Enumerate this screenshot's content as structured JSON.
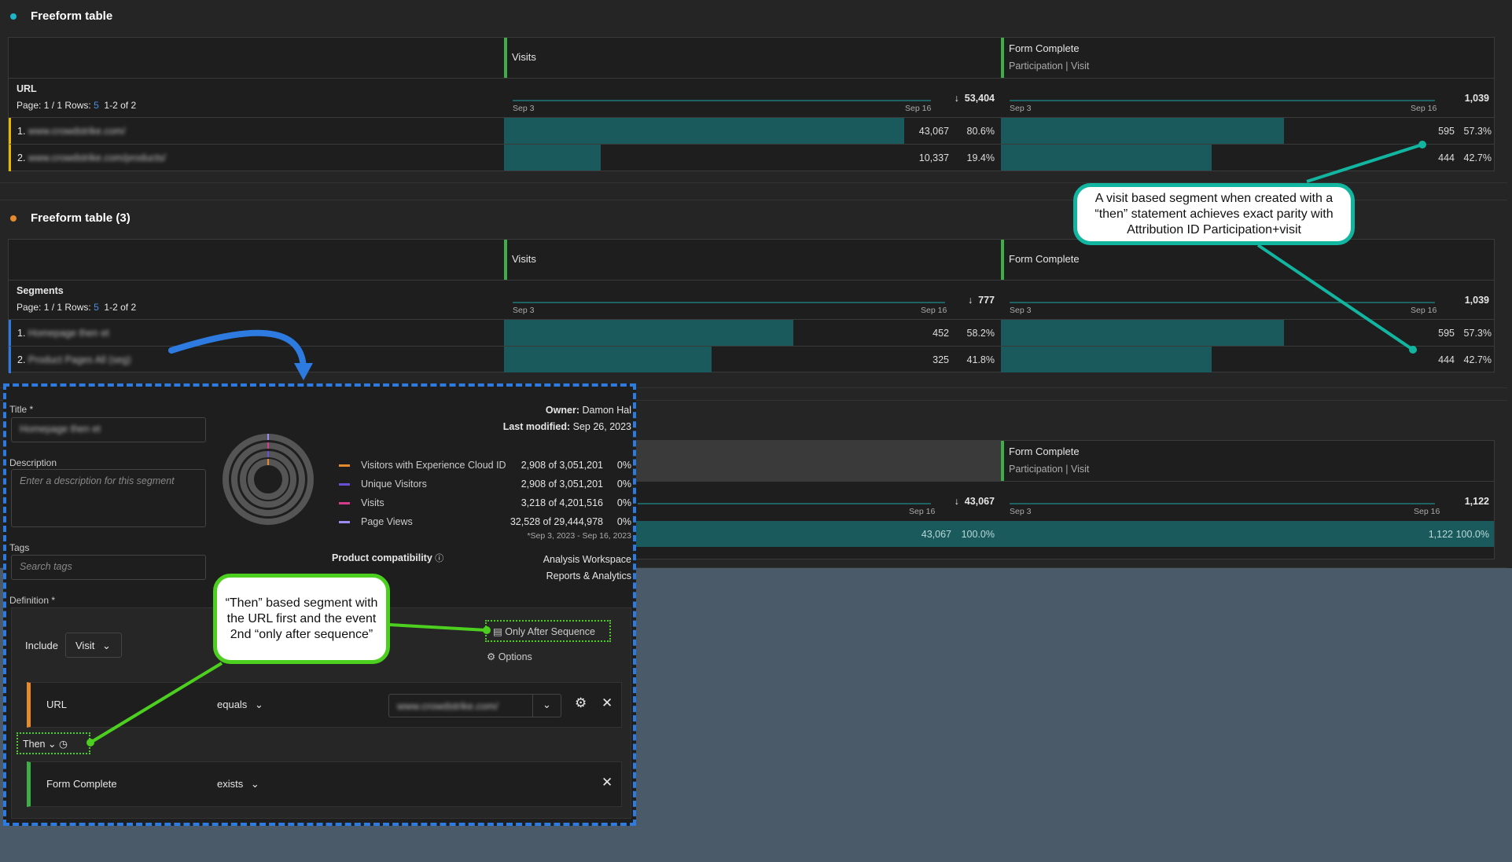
{
  "colors": {
    "accent_teal": "#1b5a5c",
    "metric_green": "#3fae49",
    "annotation_blue": "#2d7be0",
    "callout_teal": "#12b5a0",
    "callout_green": "#4ccf1f"
  },
  "table1": {
    "title": "Freeform table",
    "dimension": "URL",
    "paging": {
      "prefix": "Page: 1 / 1 Rows:",
      "rows": "5",
      "range": "1-2 of 2"
    },
    "columns": [
      {
        "label": "Visits",
        "sublabel": "",
        "start": "Sep 3",
        "end": "Sep 16",
        "total": "53,404",
        "sorted": "sort-down-icon"
      },
      {
        "label": "Form Complete",
        "sublabel": "Participation | Visit",
        "start": "Sep 3",
        "end": "Sep 16",
        "total": "1,039"
      }
    ],
    "rows": [
      {
        "num": "1.",
        "label": "www.crowdstrike.com/",
        "v1": "43,067",
        "p1": "80.6%",
        "f1": 80.6,
        "v2": "595",
        "p2": "57.3%",
        "f2": 57.3
      },
      {
        "num": "2.",
        "label": "www.crowdstrike.com/products/",
        "v1": "10,337",
        "p1": "19.4%",
        "f1": 19.4,
        "v2": "444",
        "p2": "42.7%",
        "f2": 42.7
      }
    ]
  },
  "table2": {
    "title": "Freeform table (3)",
    "dimension": "Segments",
    "paging": {
      "prefix": "Page: 1 / 1 Rows:",
      "rows": "5",
      "range": "1-2 of 2"
    },
    "columns": [
      {
        "label": "Visits",
        "start": "Sep 3",
        "end": "Sep 16",
        "total": "777",
        "sorted": "sort-down-icon"
      },
      {
        "label": "Form Complete",
        "start": "Sep 3",
        "end": "Sep 16",
        "total": "1,039"
      }
    ],
    "rows": [
      {
        "num": "1.",
        "label": "Homepage then et",
        "v1": "452",
        "p1": "58.2%",
        "f1": 58.2,
        "v2": "595",
        "p2": "57.3%",
        "f2": 57.3
      },
      {
        "num": "2.",
        "label": "Product Pages All (seg)",
        "v1": "325",
        "p1": "41.8%",
        "f1": 41.8,
        "v2": "444",
        "p2": "42.7%",
        "f2": 42.7
      }
    ]
  },
  "table3": {
    "columns": [
      {
        "end": "Sep 16",
        "total": "43,067"
      },
      {
        "label": "Form Complete",
        "sublabel": "Participation | Visit",
        "start": "Sep 3",
        "end": "Sep 16",
        "total": "1,122"
      }
    ],
    "row": {
      "v1": "43,067",
      "p1": "100.0%",
      "v2": "1,122",
      "p2": "100.0%"
    }
  },
  "segment": {
    "title_label": "Title *",
    "title_value": "Homepage then et",
    "description_label": "Description",
    "description_placeholder": "Enter a description for this segment",
    "tags_label": "Tags",
    "tags_placeholder": "Search tags",
    "owner_label": "Owner:",
    "owner": "Damon Hal",
    "modified_label": "Last modified:",
    "modified": "Sep 26, 2023",
    "summary": [
      {
        "label": "Visitors with Experience Cloud ID",
        "value": "2,908 of 3,051,201",
        "pct": "0%",
        "color": "#e68a2e"
      },
      {
        "label": "Unique Visitors",
        "value": "2,908 of 3,051,201",
        "pct": "0%",
        "color": "#6a4fd6"
      },
      {
        "label": "Visits",
        "value": "3,218 of 4,201,516",
        "pct": "0%",
        "color": "#d63c8a"
      },
      {
        "label": "Page Views",
        "value": "32,528 of 29,444,978",
        "pct": "0%",
        "color": "#9a8cf0"
      }
    ],
    "date_range": "*Sep 3, 2023 - Sep 16, 2023",
    "compat_label": "Product compatibility",
    "compat": [
      "Analysis Workspace",
      "Reports & Analytics"
    ],
    "definition_label": "Definition *",
    "include_label": "Include",
    "include_value": "Visit",
    "sequence_label": "Only After Sequence",
    "options_label": "Options",
    "rule1": {
      "dimension": "URL",
      "operator": "equals",
      "value": "www.crowdstrike.com/"
    },
    "then_label": "Then",
    "rule2": {
      "dimension": "Form Complete",
      "operator": "exists"
    }
  },
  "callouts": {
    "teal": "A visit based segment when created with a “then” statement achieves exact parity with Attribution ID Participation+visit",
    "green": "“Then” based segment with the URL first and the event 2nd “only after sequence”"
  }
}
